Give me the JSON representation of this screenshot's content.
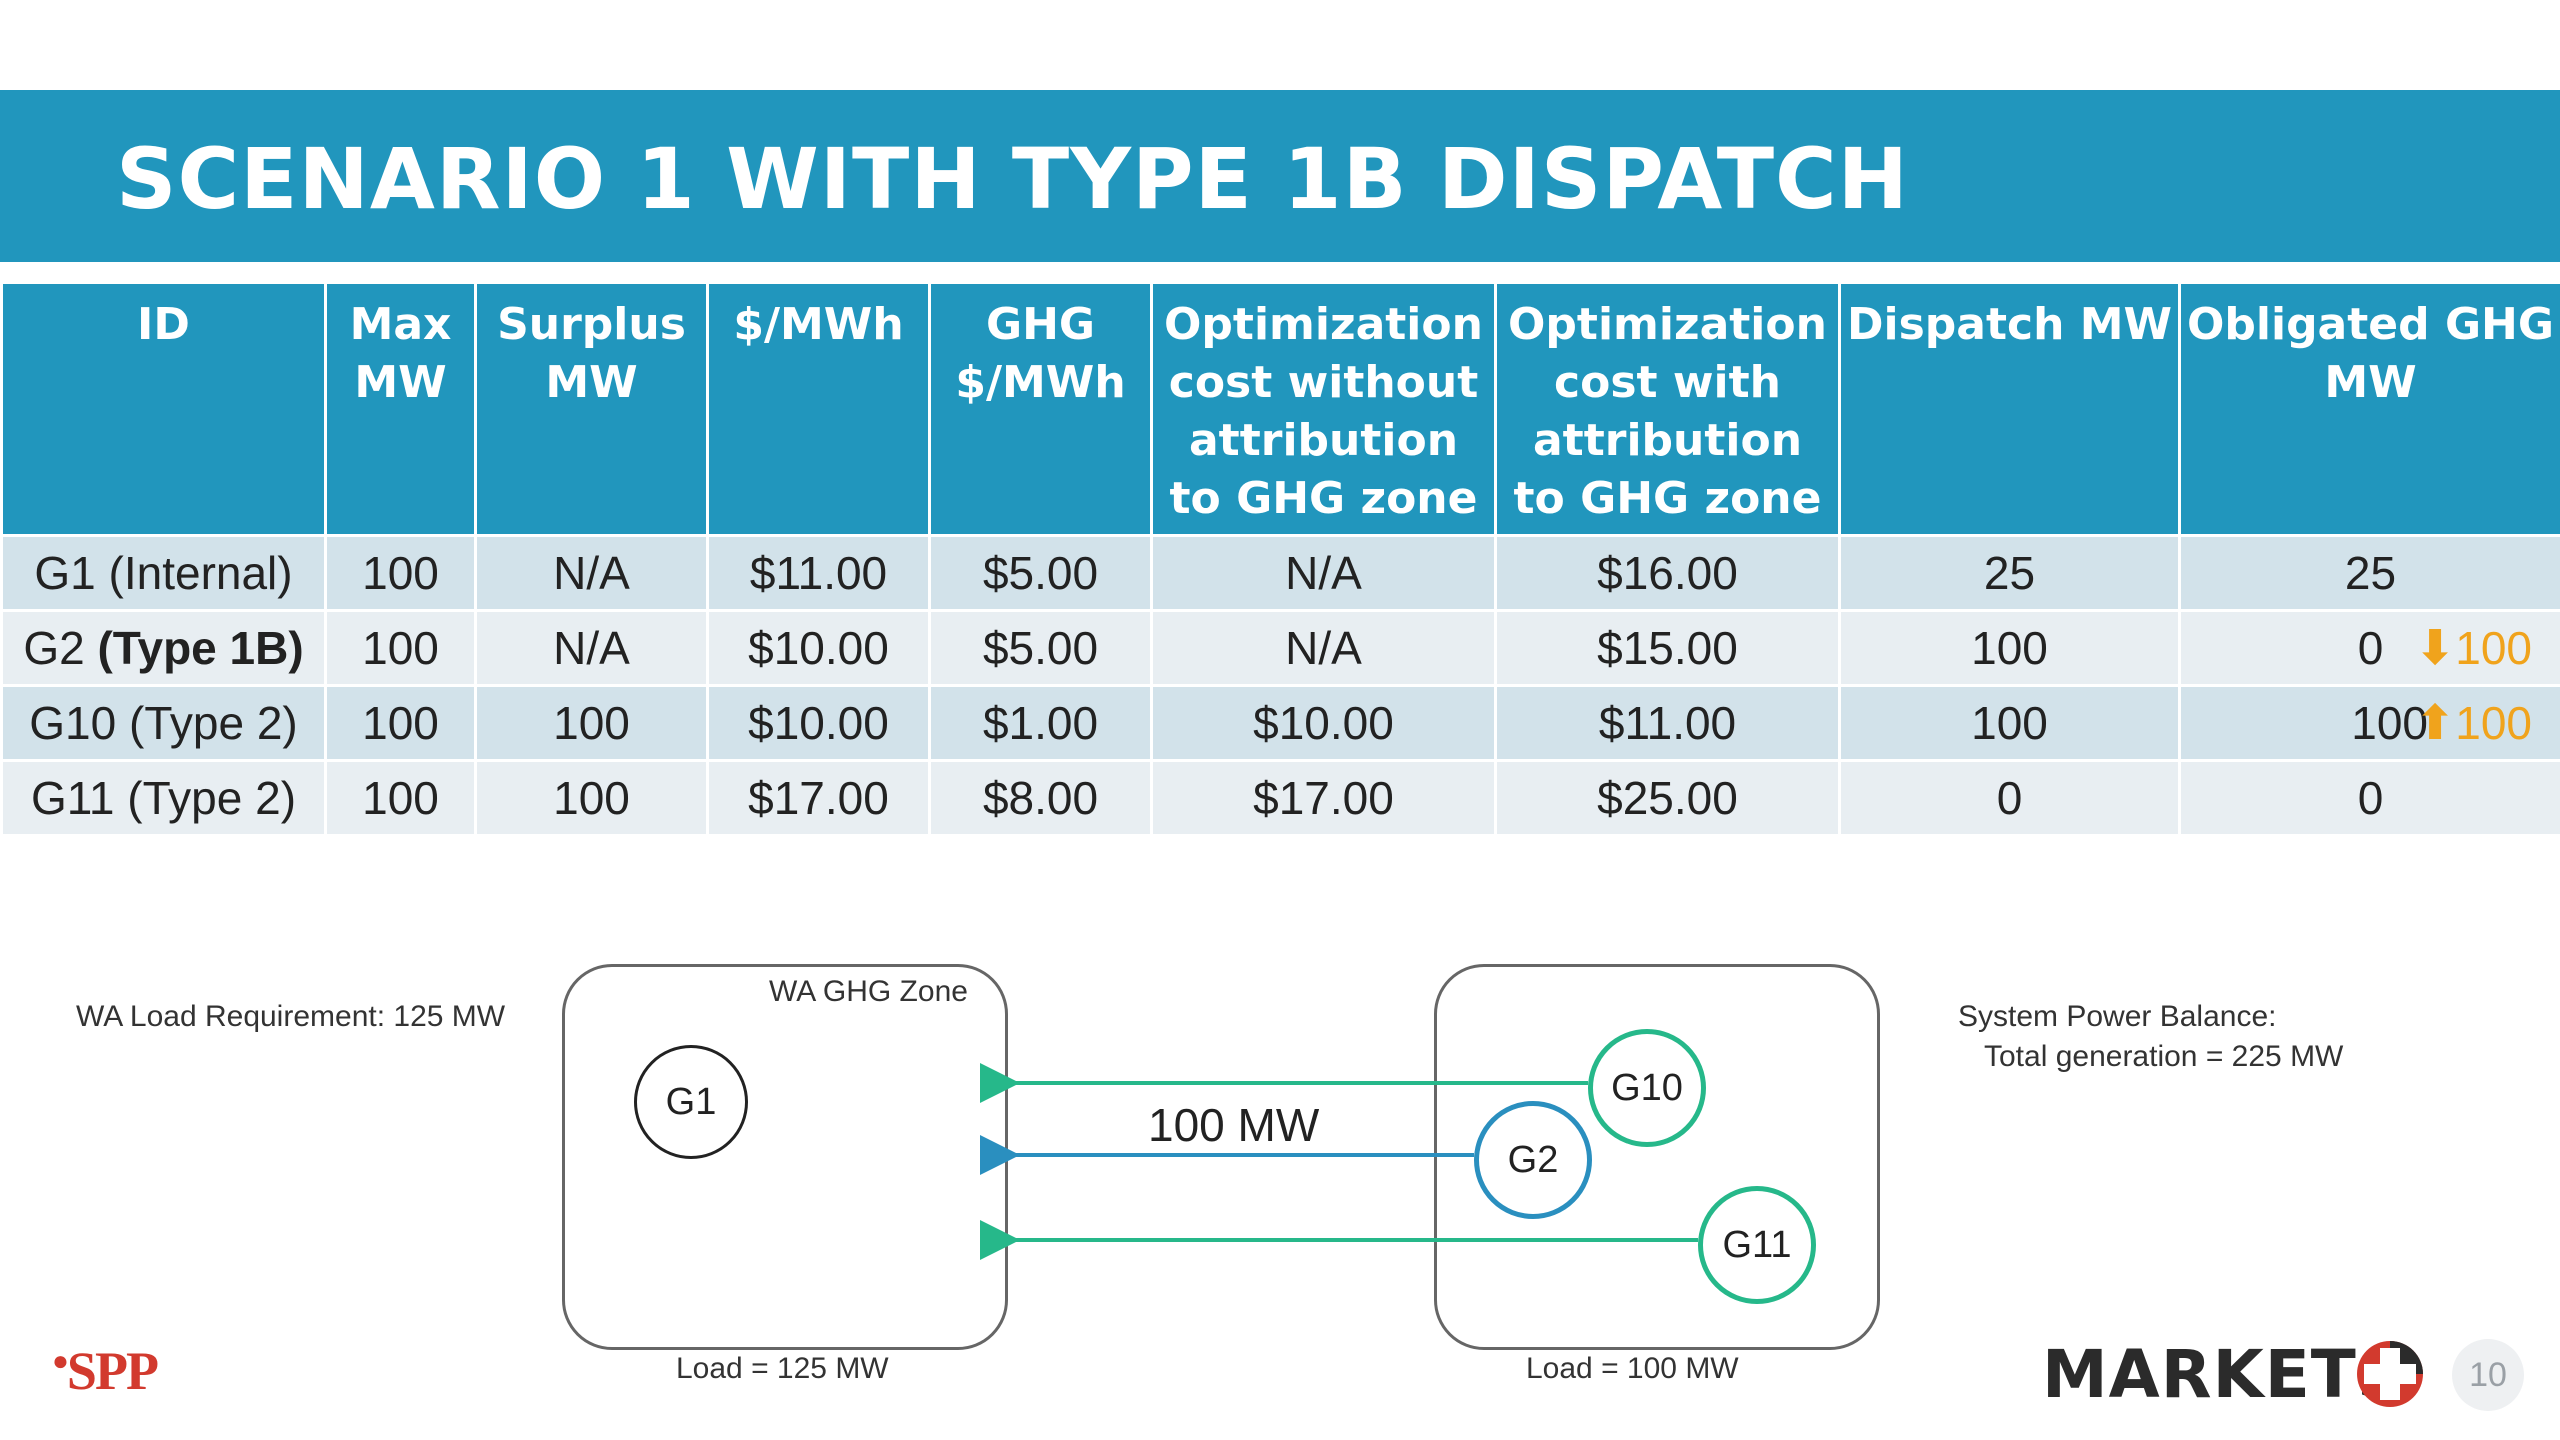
{
  "title": "SCENARIO 1 WITH TYPE 1B DISPATCH",
  "table": {
    "headers": [
      "ID",
      "Max MW",
      "Surplus MW",
      "$/MWh",
      "GHG $/MWh",
      "Optimization cost without attribution to GHG zone",
      "Optimization cost with attribution to GHG zone",
      "Dispatch MW",
      "Obligated GHG MW"
    ],
    "rows": [
      {
        "id_name": "G1 ",
        "id_type": "(Internal)",
        "id_type_bold": false,
        "max_mw": "100",
        "surplus_mw": "N/A",
        "price": "$11.00",
        "ghg_price": "$5.00",
        "cost_without": "N/A",
        "cost_with": "$16.00",
        "dispatch_mw": "25",
        "obligated_mw": "25",
        "change_dir": "",
        "change_val": ""
      },
      {
        "id_name": "G2 ",
        "id_type": "(Type 1B)",
        "id_type_bold": true,
        "max_mw": "100",
        "surplus_mw": "N/A",
        "price": "$10.00",
        "ghg_price": "$5.00",
        "cost_without": "N/A",
        "cost_with": "$15.00",
        "dispatch_mw": "100",
        "obligated_mw": "0",
        "change_dir": "down",
        "change_val": "100"
      },
      {
        "id_name": "G10 ",
        "id_type": "(Type 2)",
        "id_type_bold": false,
        "max_mw": "100",
        "surplus_mw": "100",
        "price": "$10.00",
        "ghg_price": "$1.00",
        "cost_without": "$10.00",
        "cost_with": "$11.00",
        "dispatch_mw": "100",
        "obligated_mw": "100",
        "change_dir": "up",
        "change_val": "100"
      },
      {
        "id_name": "G11 ",
        "id_type": "(Type 2)",
        "id_type_bold": false,
        "max_mw": "100",
        "surplus_mw": "100",
        "price": "$17.00",
        "ghg_price": "$8.00",
        "cost_without": "$17.00",
        "cost_with": "$25.00",
        "dispatch_mw": "0",
        "obligated_mw": "0",
        "change_dir": "",
        "change_val": ""
      }
    ]
  },
  "diagram": {
    "wa_load_requirement": "WA Load Requirement: 125 MW",
    "wa_zone_label": "WA GHG Zone",
    "left_load": "Load = 125 MW",
    "right_load": "Load = 100 MW",
    "flow_label": "100 MW",
    "generators": {
      "g1": "G1",
      "g2": "G2",
      "g10": "G10",
      "g11": "G11"
    },
    "system_balance_title": "System Power Balance:",
    "system_balance_total": "Total generation = 225 MW",
    "colors": {
      "teal": "#26b88a",
      "blue": "#2a8fbf"
    }
  },
  "footer": {
    "spp_logo": "SPP",
    "markets_logo": "MARKETS",
    "page_number": "10"
  },
  "colors": {
    "title_band": "#2196bd",
    "accent_orange": "#f0a31c"
  }
}
